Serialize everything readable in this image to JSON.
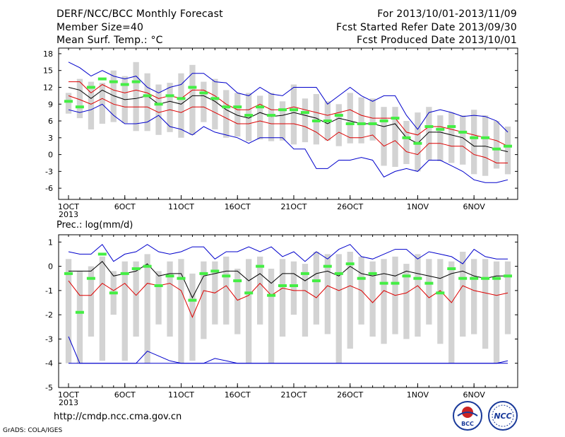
{
  "header": {
    "title": "DERF/NCC/BCC Monthly Forecast",
    "member_size": "Member Size=40",
    "variable": "Mean Surf. Temp.: °C",
    "period": "For 2013/10/01-2013/11/09",
    "started": "Fcst Started Refer Date 2013/09/30",
    "produced": "Fcst Produced Date 2013/10/01"
  },
  "precip_label": "Prec.: log(mm/d)",
  "footer": {
    "url": "http://cmdp.ncc.cma.gov.cn",
    "credit": "GrADS: COLA/IGES",
    "logo_left_text": "BCC",
    "logo_right_text": "NCC"
  },
  "colors": {
    "spread_band": "#d3d3d3",
    "mean": "#000000",
    "inner_bounds": "#dd0000",
    "outer_bounds": "#0000cc",
    "observed": "#44ee44"
  },
  "chart_data": [
    {
      "type": "line",
      "title": "Mean Surf. Temp.: °C",
      "ylim": [
        -8,
        19
      ],
      "yticks": [
        -6,
        -3,
        0,
        3,
        6,
        9,
        12,
        15,
        18
      ],
      "xticks": [
        "1OCT",
        "6OCT",
        "11OCT",
        "16OCT",
        "21OCT",
        "26OCT",
        "1NOV",
        "6NOV"
      ],
      "xtick_days": [
        1,
        6,
        11,
        16,
        21,
        26,
        32,
        37
      ],
      "year_label": "2013",
      "days": [
        1,
        2,
        3,
        4,
        5,
        6,
        7,
        8,
        9,
        10,
        11,
        12,
        13,
        14,
        15,
        16,
        17,
        18,
        19,
        20,
        21,
        22,
        23,
        24,
        25,
        26,
        27,
        28,
        29,
        30,
        31,
        32,
        33,
        34,
        35,
        36,
        37,
        38,
        39,
        40
      ],
      "ensemble_min": [
        7.3,
        6.5,
        4.5,
        5.5,
        5.8,
        5.6,
        4.2,
        4.2,
        3.5,
        4.0,
        3.0,
        3.5,
        5.8,
        4.5,
        3.0,
        3.2,
        2.4,
        2.7,
        2.4,
        2.5,
        1.8,
        2.2,
        1.8,
        2.5,
        1.5,
        2.0,
        2.0,
        2.5,
        -2.0,
        -2.2,
        -1.7,
        -3.0,
        -1.0,
        -1.2,
        -1.5,
        -1.8,
        -3.5,
        -3.8,
        -2.5,
        -3.5
      ],
      "ensemble_max": [
        11.0,
        13.5,
        13.0,
        12.8,
        15.0,
        14.0,
        16.5,
        14.5,
        12.5,
        12.8,
        14.5,
        16.0,
        13.0,
        13.5,
        11.5,
        11.0,
        11.0,
        10.5,
        11.0,
        9.5,
        12.5,
        10.0,
        10.8,
        9.5,
        9.0,
        11.0,
        10.2,
        10.0,
        8.5,
        8.5,
        6.0,
        7.5,
        8.5,
        7.0,
        7.5,
        7.0,
        8.0,
        7.0,
        6.0,
        5.0
      ],
      "series": [
        {
          "name": "max",
          "values": [
            16.5,
            15.5,
            14.0,
            15.0,
            14.0,
            13.5,
            14.0,
            12.0,
            11.0,
            12.0,
            12.5,
            14.5,
            14.5,
            13.0,
            12.8,
            11.0,
            10.5,
            12.0,
            10.8,
            10.5,
            12.0,
            12.0,
            12.0,
            9.0,
            10.5,
            12.0,
            10.5,
            9.5,
            10.5,
            10.5,
            7.0,
            4.5,
            7.5,
            8.0,
            7.5,
            6.8,
            7.0,
            6.8,
            6.0,
            4.0
          ]
        },
        {
          "name": "mean+1sd",
          "values": [
            13.0,
            13.0,
            11.0,
            12.5,
            11.5,
            11.0,
            11.5,
            11.0,
            10.0,
            10.5,
            10.0,
            11.5,
            11.5,
            10.5,
            9.0,
            8.0,
            8.0,
            9.0,
            8.0,
            8.0,
            8.5,
            8.0,
            7.5,
            7.0,
            7.5,
            8.0,
            7.0,
            6.5,
            6.5,
            6.5,
            4.0,
            3.5,
            5.0,
            5.0,
            4.5,
            4.0,
            3.5,
            3.0,
            2.5,
            1.5
          ]
        },
        {
          "name": "mean",
          "values": [
            12.0,
            11.5,
            10.0,
            11.5,
            10.5,
            9.8,
            10.0,
            10.5,
            9.0,
            9.5,
            9.0,
            10.5,
            10.5,
            9.5,
            8.0,
            7.0,
            6.5,
            7.5,
            6.8,
            7.0,
            7.5,
            7.0,
            6.5,
            5.5,
            6.5,
            6.0,
            5.5,
            5.5,
            5.0,
            5.5,
            3.0,
            2.0,
            4.0,
            4.0,
            3.5,
            3.0,
            1.5,
            1.5,
            1.0,
            0.5
          ]
        },
        {
          "name": "mean-1sd",
          "values": [
            10.5,
            9.8,
            9.0,
            10.0,
            9.0,
            8.5,
            8.5,
            8.5,
            7.5,
            8.0,
            7.5,
            8.5,
            8.5,
            7.5,
            6.5,
            5.5,
            5.5,
            6.0,
            5.5,
            5.5,
            5.5,
            5.0,
            4.0,
            2.5,
            4.0,
            3.0,
            3.0,
            3.5,
            1.5,
            2.5,
            0.5,
            0.0,
            2.0,
            2.0,
            1.5,
            1.5,
            0.0,
            -0.5,
            -1.5,
            -1.5
          ]
        },
        {
          "name": "min",
          "values": [
            8.0,
            7.5,
            8.0,
            9.0,
            7.0,
            5.5,
            5.5,
            5.8,
            7.0,
            5.0,
            4.5,
            3.5,
            5.0,
            4.0,
            3.5,
            3.0,
            2.0,
            3.0,
            3.0,
            3.0,
            1.0,
            1.0,
            -2.5,
            -2.5,
            -1.0,
            -1.0,
            -0.5,
            -1.0,
            -4.0,
            -3.0,
            -2.5,
            -3.0,
            -1.0,
            -1.0,
            -2.0,
            -3.0,
            -4.5,
            -5.0,
            -5.0,
            -4.5
          ]
        }
      ],
      "observed": [
        9.5,
        8.5,
        12.0,
        13.5,
        13.0,
        12.5,
        13.0,
        10.5,
        9.0,
        10.5,
        10.0,
        12.0,
        11.0,
        10.0,
        8.5,
        8.5,
        7.0,
        8.5,
        7.0,
        8.0,
        8.0,
        7.5,
        6.0,
        6.0,
        7.0,
        5.5,
        5.5,
        5.5,
        6.0,
        6.5,
        3.0,
        2.0,
        5.0,
        4.5,
        5.0,
        4.0,
        3.0,
        3.0,
        1.0,
        1.5
      ]
    },
    {
      "type": "line",
      "title": "Prec.: log(mm/d)",
      "ylim": [
        -5,
        1.3
      ],
      "yticks": [
        -5,
        -4,
        -3,
        -2,
        -1,
        0,
        1
      ],
      "xticks": [
        "1OCT",
        "6OCT",
        "11OCT",
        "16OCT",
        "21OCT",
        "26OCT",
        "1NOV",
        "6NOV"
      ],
      "xtick_days": [
        1,
        6,
        11,
        16,
        21,
        26,
        32,
        37
      ],
      "year_label": "2013",
      "days": [
        1,
        2,
        3,
        4,
        5,
        6,
        7,
        8,
        9,
        10,
        11,
        12,
        13,
        14,
        15,
        16,
        17,
        18,
        19,
        20,
        21,
        22,
        23,
        24,
        25,
        26,
        27,
        28,
        29,
        30,
        31,
        32,
        33,
        34,
        35,
        36,
        37,
        38,
        39,
        40
      ],
      "ensemble_min": [
        -4.0,
        -4.0,
        -2.9,
        -3.9,
        -2.0,
        -3.9,
        -2.9,
        -4.0,
        -2.4,
        -2.9,
        -4.0,
        -3.9,
        -3.0,
        -2.4,
        -2.4,
        -2.8,
        -4.0,
        -2.4,
        -4.0,
        -2.9,
        -2.0,
        -2.9,
        -2.4,
        -2.8,
        -4.0,
        -3.4,
        -2.4,
        -2.9,
        -3.2,
        -2.8,
        -3.0,
        -2.9,
        -2.4,
        -3.2,
        -4.0,
        -2.9,
        -2.8,
        -3.4,
        -4.0,
        -2.8
      ],
      "ensemble_max": [
        0.3,
        -0.2,
        0.0,
        0.4,
        -0.2,
        0.2,
        0.2,
        0.5,
        -0.2,
        0.2,
        0.3,
        -0.3,
        0.2,
        0.2,
        0.4,
        -0.1,
        0.3,
        0.4,
        -0.1,
        0.3,
        0.2,
        0.1,
        0.6,
        0.5,
        0.5,
        0.6,
        0.4,
        0.2,
        0.3,
        0.4,
        0.1,
        0.5,
        0.3,
        0.3,
        0.2,
        0.6,
        0.3,
        0.3,
        0.2,
        0.2
      ],
      "series": [
        {
          "name": "max",
          "values": [
            0.6,
            0.5,
            0.5,
            0.9,
            0.2,
            0.5,
            0.6,
            0.9,
            0.6,
            0.5,
            0.6,
            0.8,
            0.8,
            0.3,
            0.6,
            0.6,
            0.8,
            0.6,
            0.8,
            0.4,
            0.6,
            0.2,
            0.6,
            0.3,
            0.7,
            0.9,
            0.4,
            0.3,
            0.5,
            0.7,
            0.7,
            0.3,
            0.6,
            0.5,
            0.4,
            0.1,
            0.7,
            0.4,
            0.3,
            0.3
          ]
        },
        {
          "name": "mean",
          "values": [
            -0.2,
            -0.2,
            -0.2,
            0.2,
            -0.4,
            -0.3,
            -0.2,
            0.1,
            -0.4,
            -0.3,
            -0.3,
            -1.3,
            -0.4,
            -0.3,
            -0.2,
            -0.2,
            -0.6,
            -0.3,
            -0.7,
            -0.3,
            -0.3,
            -0.6,
            -0.3,
            -0.2,
            -0.4,
            0.0,
            -0.3,
            -0.4,
            -0.3,
            -0.4,
            -0.2,
            -0.3,
            -0.4,
            -0.5,
            -0.3,
            -0.2,
            -0.4,
            -0.5,
            -0.4,
            -0.4
          ]
        },
        {
          "name": "p10",
          "values": [
            -0.6,
            -1.2,
            -1.2,
            -0.7,
            -1.0,
            -0.7,
            -1.2,
            -0.7,
            -0.8,
            -0.7,
            -1.0,
            -2.1,
            -1.0,
            -1.1,
            -0.8,
            -1.4,
            -1.2,
            -0.7,
            -1.2,
            -0.9,
            -1.0,
            -1.0,
            -1.3,
            -0.8,
            -1.0,
            -0.8,
            -1.0,
            -1.5,
            -1.0,
            -1.2,
            -1.1,
            -0.8,
            -1.3,
            -1.0,
            -1.5,
            -0.8,
            -1.0,
            -1.1,
            -1.2,
            -1.1
          ]
        },
        {
          "name": "min",
          "values": [
            -2.9,
            -4.0,
            -4.0,
            -4.0,
            -4.0,
            -4.0,
            -4.0,
            -3.5,
            -3.7,
            -3.9,
            -4.0,
            -4.0,
            -4.0,
            -3.8,
            -3.9,
            -4.0,
            -4.0,
            -4.0,
            -4.0,
            -4.0,
            -4.0,
            -4.0,
            -4.0,
            -4.0,
            -4.0,
            -4.0,
            -4.0,
            -4.0,
            -4.0,
            -4.0,
            -4.0,
            -4.0,
            -4.0,
            -4.0,
            -4.0,
            -4.0,
            -4.0,
            -4.0,
            -4.0,
            -4.0
          ]
        },
        {
          "name": "floor",
          "values": [
            -4.0,
            -4.0,
            -4.0,
            -4.0,
            -4.0,
            -4.0,
            -4.0,
            -4.0,
            -4.0,
            -4.0,
            -4.0,
            -4.0,
            -4.0,
            -4.0,
            -4.0,
            -4.0,
            -4.0,
            -4.0,
            -4.0,
            -4.0,
            -4.0,
            -4.0,
            -4.0,
            -4.0,
            -4.0,
            -4.0,
            -4.0,
            -4.0,
            -4.0,
            -4.0,
            -4.0,
            -4.0,
            -4.0,
            -4.0,
            -4.0,
            -4.0,
            -4.0,
            -4.0,
            -4.0,
            -3.9
          ]
        }
      ],
      "observed": [
        -0.3,
        -1.9,
        -0.5,
        0.5,
        -1.1,
        -0.3,
        -0.1,
        0.0,
        -0.8,
        -0.4,
        -0.5,
        -1.4,
        -0.3,
        -0.2,
        -0.4,
        -0.6,
        -1.1,
        0.0,
        -1.2,
        -0.8,
        -0.8,
        -0.3,
        -0.6,
        0.0,
        -0.3,
        0.1,
        -0.5,
        -0.3,
        -0.7,
        -0.7,
        -0.4,
        -0.5,
        -0.7,
        -1.1,
        -0.1,
        -0.5,
        -0.5,
        -0.5,
        -0.5,
        -0.4
      ]
    }
  ]
}
